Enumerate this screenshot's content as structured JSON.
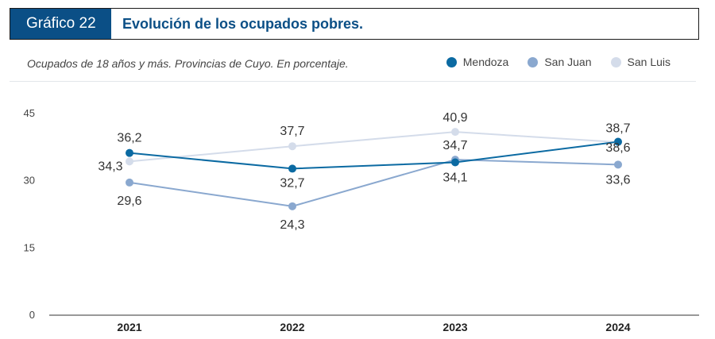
{
  "header": {
    "tag": "Gráfico 22",
    "title": "Evolución de los ocupados pobres."
  },
  "subtitle": "Ocupados de 18 años y más. Provincias de Cuyo. En porcentaje.",
  "chart_data": {
    "type": "line",
    "categories": [
      "2021",
      "2022",
      "2023",
      "2024"
    ],
    "yticks": [
      "0",
      "15",
      "30",
      "45"
    ],
    "ylim": [
      0,
      45
    ],
    "series": [
      {
        "name": "Mendoza",
        "color": "#0b6aa2",
        "values": [
          36.2,
          32.7,
          34.1,
          38.7
        ],
        "labels": [
          "36,2",
          "32,7",
          "34,1",
          "38,7"
        ]
      },
      {
        "name": "San Juan",
        "color": "#8aa8cf",
        "values": [
          29.6,
          24.3,
          34.7,
          33.6
        ],
        "labels": [
          "29,6",
          "24,3",
          "34,7",
          "33,6"
        ]
      },
      {
        "name": "San Luis",
        "color": "#d4dcea",
        "values": [
          34.3,
          37.7,
          40.9,
          38.6
        ],
        "labels": [
          "34,3",
          "37,7",
          "40,9",
          "38,6"
        ]
      }
    ],
    "grid": false,
    "legend_position": "top-right"
  }
}
